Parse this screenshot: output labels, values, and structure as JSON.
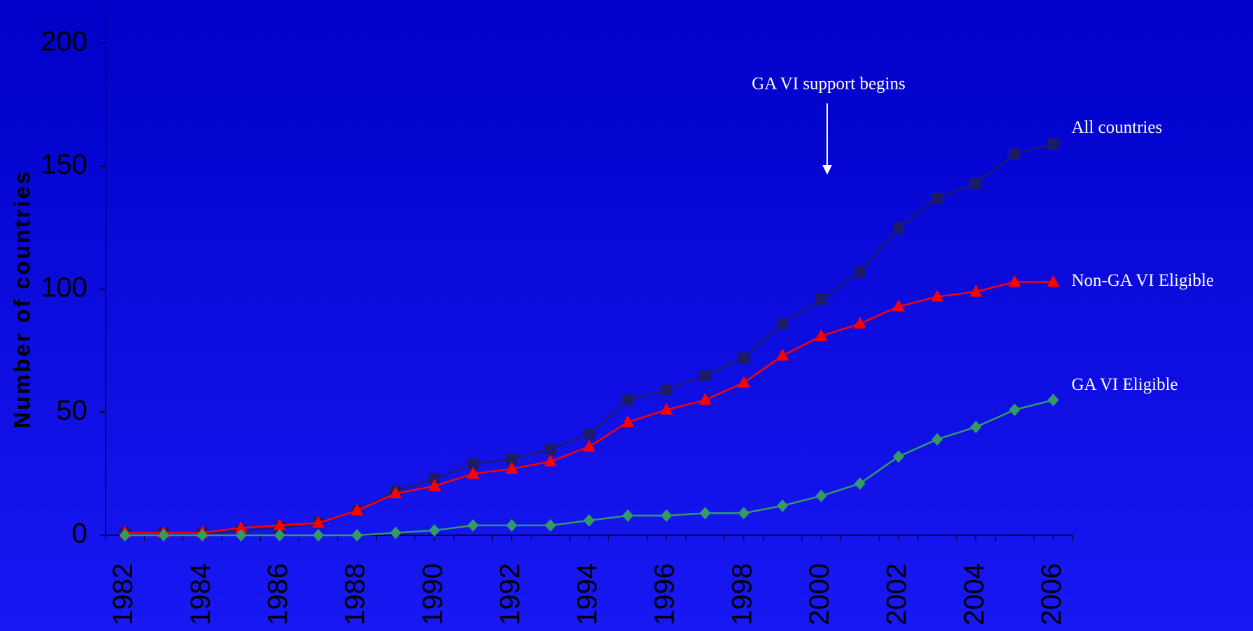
{
  "chart_data": {
    "type": "line",
    "y_label": "Number of countries",
    "annotation": "GA VI support begins",
    "x": [
      1982,
      1983,
      1984,
      1985,
      1986,
      1987,
      1988,
      1989,
      1990,
      1991,
      1992,
      1993,
      1994,
      1995,
      1996,
      1997,
      1998,
      1999,
      2000,
      2001,
      2002,
      2003,
      2004,
      2005,
      2006
    ],
    "series": [
      {
        "name": "All countries",
        "color": "#1c1c66",
        "marker": "square",
        "values": [
          1,
          1,
          1,
          2,
          3,
          5,
          10,
          18,
          23,
          29,
          31,
          35,
          41,
          55,
          59,
          65,
          72,
          86,
          96,
          107,
          125,
          137,
          143,
          155,
          159
        ]
      },
      {
        "name": "Non-GA VI Eligible",
        "color": "#ff0000",
        "marker": "triangle",
        "values": [
          1,
          1,
          1,
          3,
          4,
          5,
          10,
          17,
          20,
          25,
          27,
          30,
          36,
          46,
          51,
          55,
          62,
          73,
          81,
          86,
          93,
          97,
          99,
          103,
          103
        ]
      },
      {
        "name": "GA VI Eligible",
        "color": "#339966",
        "marker": "diamond",
        "values": [
          0,
          0,
          0,
          0,
          0,
          0,
          0,
          1,
          2,
          4,
          4,
          4,
          6,
          8,
          8,
          9,
          9,
          12,
          16,
          21,
          32,
          39,
          44,
          51,
          55
        ]
      }
    ],
    "xlim": [
      1981.5,
      2006.5
    ],
    "xticks": [
      1982,
      1984,
      1986,
      1988,
      1990,
      1992,
      1994,
      1996,
      1998,
      2000,
      2002,
      2004,
      2006
    ],
    "ylim": [
      0,
      200
    ],
    "yticks": [
      0,
      50,
      100,
      150,
      200
    ]
  }
}
